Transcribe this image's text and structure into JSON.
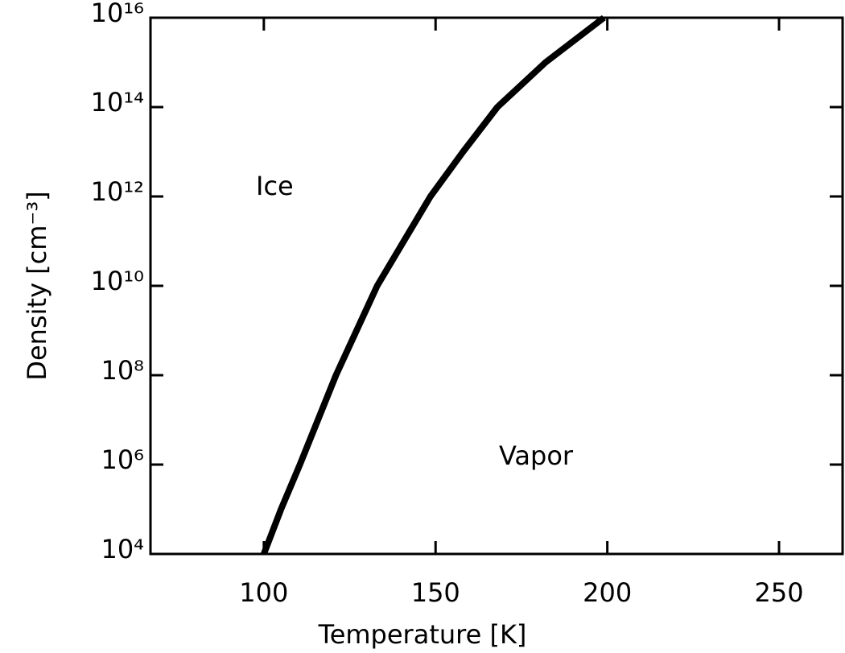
{
  "chart_data": {
    "type": "line",
    "x_label": "Temperature [K]",
    "y_label": "Density [cm⁻³]",
    "annotations": [
      "Ice",
      "Vapor"
    ],
    "series": [
      {
        "color": "#000000",
        "x": [
          100,
          105,
          110.5,
          121,
          133,
          148.5,
          158,
          168,
          182,
          199
        ],
        "values": [
          10000,
          100000,
          1000000,
          100000000,
          10000000000,
          1000000000000,
          10000000000000,
          100000000000000,
          1000000000000000,
          10000000000000000
        ]
      }
    ],
    "xlim": [
      67,
      268.5
    ],
    "xticks": [
      100,
      150,
      200,
      250
    ],
    "ylim": [
      10000,
      10000000000000000
    ],
    "ylog": true,
    "yticks": [
      {
        "value": 10000,
        "label": "10⁴"
      },
      {
        "value": 1000000,
        "label": "10⁶"
      },
      {
        "value": 100000000,
        "label": "10⁸"
      },
      {
        "value": 10000000000,
        "label": "10¹⁰"
      },
      {
        "value": 1000000000000,
        "label": "10¹²"
      },
      {
        "value": 100000000000000,
        "label": "10¹⁴"
      },
      {
        "value": 10000000000000000,
        "label": "10¹⁶"
      }
    ],
    "grid": false
  }
}
